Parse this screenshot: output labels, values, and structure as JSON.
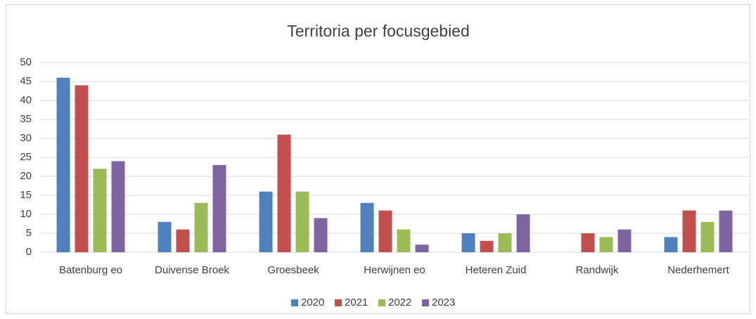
{
  "chart_data": {
    "type": "bar",
    "title": "Territoria per focusgebied",
    "categories": [
      "Batenburg eo",
      "Duivense Broek",
      "Groesbeek",
      "Herwijnen eo",
      "Heteren Zuid",
      "Randwijk",
      "Nederhemert"
    ],
    "series": [
      {
        "name": "2020",
        "color": "#4f81bd",
        "values": [
          46,
          8,
          16,
          13,
          5,
          null,
          4
        ]
      },
      {
        "name": "2021",
        "color": "#c0504d",
        "values": [
          44,
          6,
          31,
          11,
          3,
          5,
          11
        ]
      },
      {
        "name": "2022",
        "color": "#9bbb59",
        "values": [
          22,
          13,
          16,
          6,
          5,
          4,
          8
        ]
      },
      {
        "name": "2023",
        "color": "#8064a2",
        "values": [
          24,
          23,
          9,
          2,
          10,
          6,
          11
        ]
      }
    ],
    "ylim": [
      0,
      50
    ],
    "yticks": [
      0,
      5,
      10,
      15,
      20,
      25,
      30,
      35,
      40,
      45,
      50
    ],
    "grid": true,
    "legend": "bottom"
  }
}
